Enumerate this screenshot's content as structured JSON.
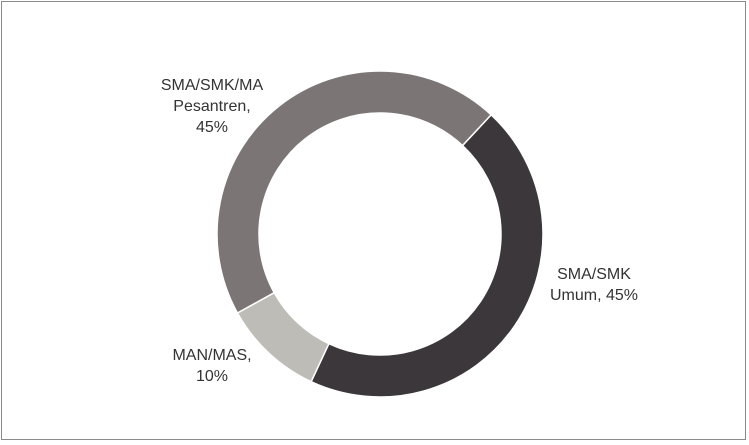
{
  "chart_data": {
    "type": "doughnut",
    "categories": [
      "SMA/SMK Umum",
      "MAN/MAS",
      "SMA/SMK/MA Pesantren"
    ],
    "values": [
      45,
      10,
      45
    ],
    "value_labels": [
      "45%",
      "10%",
      "45%"
    ],
    "label_separator": ",",
    "colors": [
      "#3b373a",
      "#bebcb7",
      "#7b7675"
    ]
  }
}
